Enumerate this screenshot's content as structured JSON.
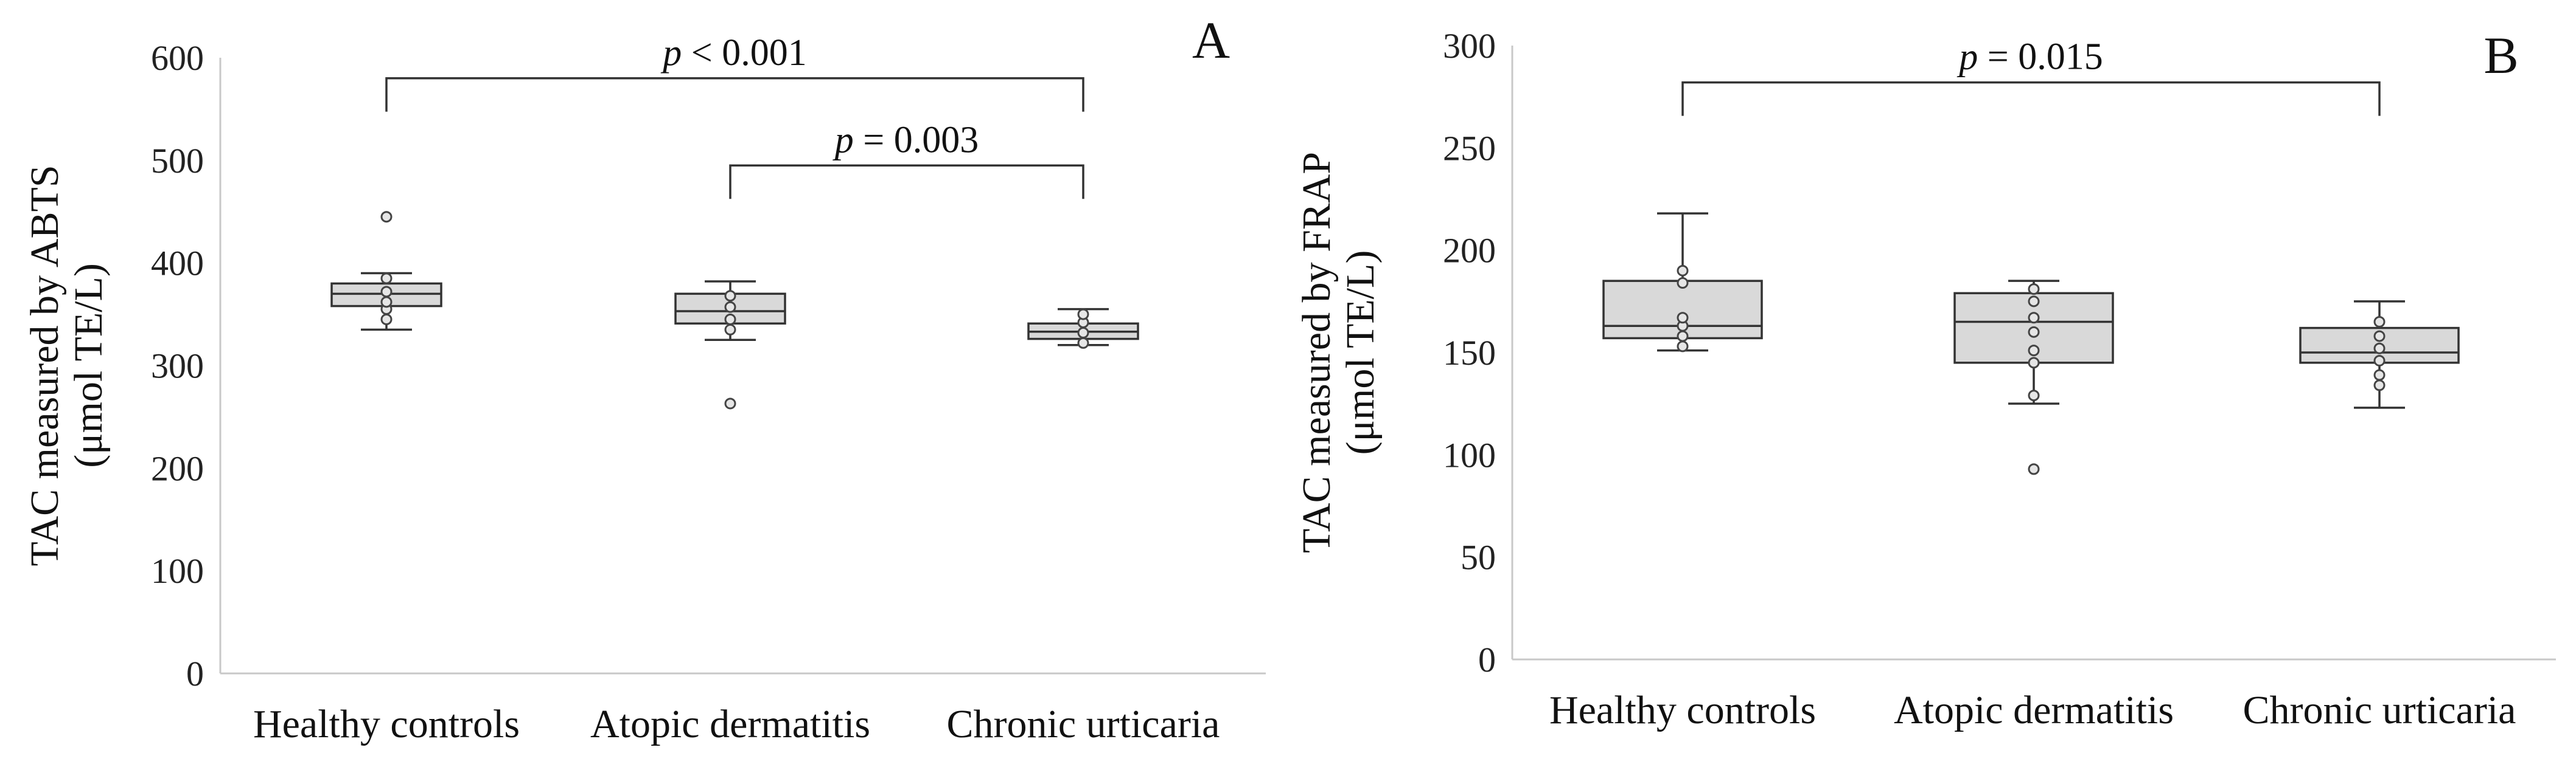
{
  "chart_data": [
    {
      "type": "box",
      "panel": "A",
      "ylabel_line1": "TAC measured by ABTS",
      "ylabel_line2": "(μmol TE/L)",
      "ylim": [
        0,
        600
      ],
      "yticks": [
        0,
        100,
        200,
        300,
        400,
        500,
        600
      ],
      "categories": [
        "Healthy controls",
        "Atopic dermatitis",
        "Chronic urticaria"
      ],
      "boxes": [
        {
          "category": "Healthy controls",
          "min": 335,
          "q1": 358,
          "median": 370,
          "q3": 380,
          "max": 390,
          "points": [
            345,
            355,
            362,
            372,
            385
          ],
          "outliers": [
            445
          ]
        },
        {
          "category": "Atopic dermatitis",
          "min": 325,
          "q1": 341,
          "median": 353,
          "q3": 370,
          "max": 382,
          "points": [
            335,
            345,
            357,
            368
          ],
          "outliers": [
            263
          ]
        },
        {
          "category": "Chronic urticaria",
          "min": 320,
          "q1": 326,
          "median": 333,
          "q3": 341,
          "max": 355,
          "points": [
            322,
            332,
            342,
            350
          ],
          "outliers": []
        }
      ],
      "comparisons": [
        {
          "from": "Healthy controls",
          "to": "Chronic urticaria",
          "level": 580,
          "prefix": "p",
          "text": " < 0.001"
        },
        {
          "from": "Atopic dermatitis",
          "to": "Chronic urticaria",
          "level": 495,
          "prefix": "p",
          "text": " = 0.003"
        }
      ]
    },
    {
      "type": "box",
      "panel": "B",
      "ylabel_line1": "TAC measured by FRAP",
      "ylabel_line2": "(μmol TE/L)",
      "ylim": [
        0,
        300
      ],
      "yticks": [
        0,
        50,
        100,
        150,
        200,
        250,
        300
      ],
      "categories": [
        "Healthy controls",
        "Atopic dermatitis",
        "Chronic urticaria"
      ],
      "boxes": [
        {
          "category": "Healthy controls",
          "min": 151,
          "q1": 157,
          "median": 163,
          "q3": 185,
          "max": 218,
          "points": [
            153,
            158,
            163,
            167,
            184,
            190
          ],
          "outliers": []
        },
        {
          "category": "Atopic dermatitis",
          "min": 125,
          "q1": 145,
          "median": 165,
          "q3": 179,
          "max": 185,
          "points": [
            129,
            145,
            151,
            160,
            167,
            175,
            181
          ],
          "outliers": [
            93
          ]
        },
        {
          "category": "Chronic urticaria",
          "min": 123,
          "q1": 145,
          "median": 150,
          "q3": 162,
          "max": 175,
          "points": [
            134,
            139,
            146,
            152,
            158,
            165
          ],
          "outliers": []
        }
      ],
      "comparisons": [
        {
          "from": "Healthy controls",
          "to": "Chronic urticaria",
          "level": 282,
          "prefix": "p",
          "text": " = 0.015"
        }
      ]
    }
  ]
}
